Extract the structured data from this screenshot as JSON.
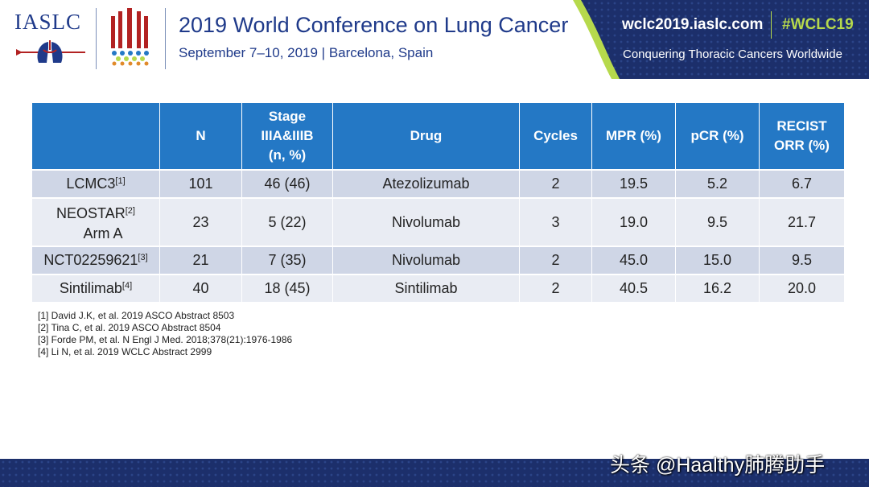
{
  "header": {
    "logo": "IASLC",
    "title": "2019 World Conference on Lung Cancer",
    "subtitle": "September 7–10, 2019 | Barcelona, Spain",
    "website": "wclc2019.iaslc.com",
    "hashtag": "#WCLC19",
    "tagline": "Conquering Thoracic Cancers Worldwide"
  },
  "table": {
    "columns": [
      "",
      "N",
      [
        "Stage",
        "IIIA&IIIB",
        "(n, %)"
      ],
      "Drug",
      "Cycles",
      "MPR (%)",
      "pCR (%)",
      [
        "RECIST",
        "ORR (%)"
      ]
    ],
    "rows": [
      {
        "study": "LCMC3",
        "ref": "[1]",
        "n": "101",
        "stage": "46 (46)",
        "drug": "Atezolizumab",
        "cycles": "2",
        "mpr": "19.5",
        "pcr": "5.2",
        "orr": "6.7"
      },
      {
        "study": "NEOSTAR",
        "ref": "[2]",
        "study_line2": "Arm A",
        "n": "23",
        "stage": "5 (22)",
        "drug": "Nivolumab",
        "cycles": "3",
        "mpr": "19.0",
        "pcr": "9.5",
        "orr": "21.7"
      },
      {
        "study": "NCT02259621",
        "ref": "[3]",
        "n": "21",
        "stage": "7 (35)",
        "drug": "Nivolumab",
        "cycles": "2",
        "mpr": "45.0",
        "pcr": "15.0",
        "orr": "9.5"
      },
      {
        "study": "Sintilimab",
        "ref": "[4]",
        "n": "40",
        "stage": "18 (45)",
        "drug": "Sintilimab",
        "cycles": "2",
        "mpr": "40.5",
        "pcr": "16.2",
        "orr": "20.0"
      }
    ]
  },
  "references": [
    "[1] David J.K, et al. 2019 ASCO Abstract 8503",
    "[2] Tina C, et al. 2019 ASCO Abstract 8504",
    "[3] Forde PM, et al. N Engl J Med. 2018;378(21):1976-1986",
    "[4] Li N, et al. 2019 WCLC Abstract 2999"
  ],
  "watermark": "头条 @Haalthy肺腾助手",
  "colors": {
    "brand_blue": "#1f3a8a",
    "header_blue": "#2478c5",
    "accent_green": "#b6d94c",
    "row_dark": "#cfd6e6",
    "row_light": "#e9ecf3",
    "banner_navy": "#1c2f6b"
  }
}
